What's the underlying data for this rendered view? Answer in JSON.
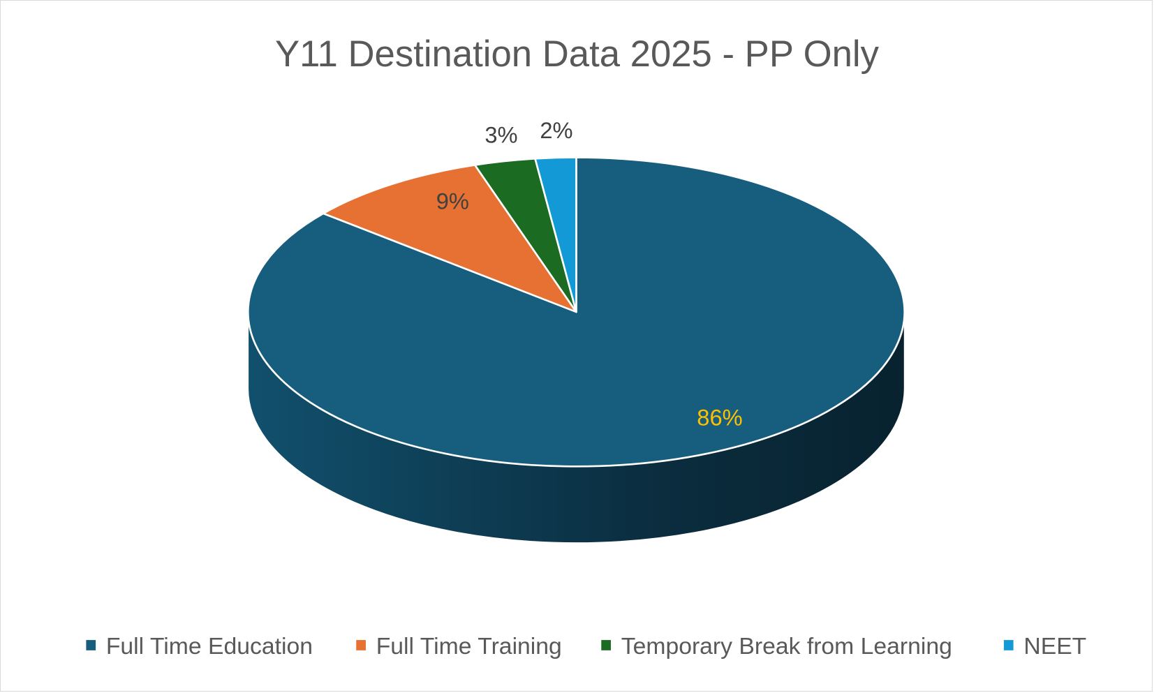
{
  "chart_data": {
    "type": "pie",
    "style": "3d",
    "title": "Y11 Destination Data 2025 - PP Only",
    "categories": [
      "Full Time Education",
      "Full Time Training",
      "Temporary Break from Learning",
      "NEET"
    ],
    "values": [
      86,
      9,
      3,
      2
    ],
    "data_labels": [
      "86%",
      "9%",
      "3%",
      "2%"
    ],
    "colors": [
      "#175e7e",
      "#e67132",
      "#1b6b22",
      "#139ad6"
    ],
    "data_label_colors": [
      "#ffc000",
      "#404040",
      "#404040",
      "#404040"
    ],
    "legend_position": "bottom"
  }
}
